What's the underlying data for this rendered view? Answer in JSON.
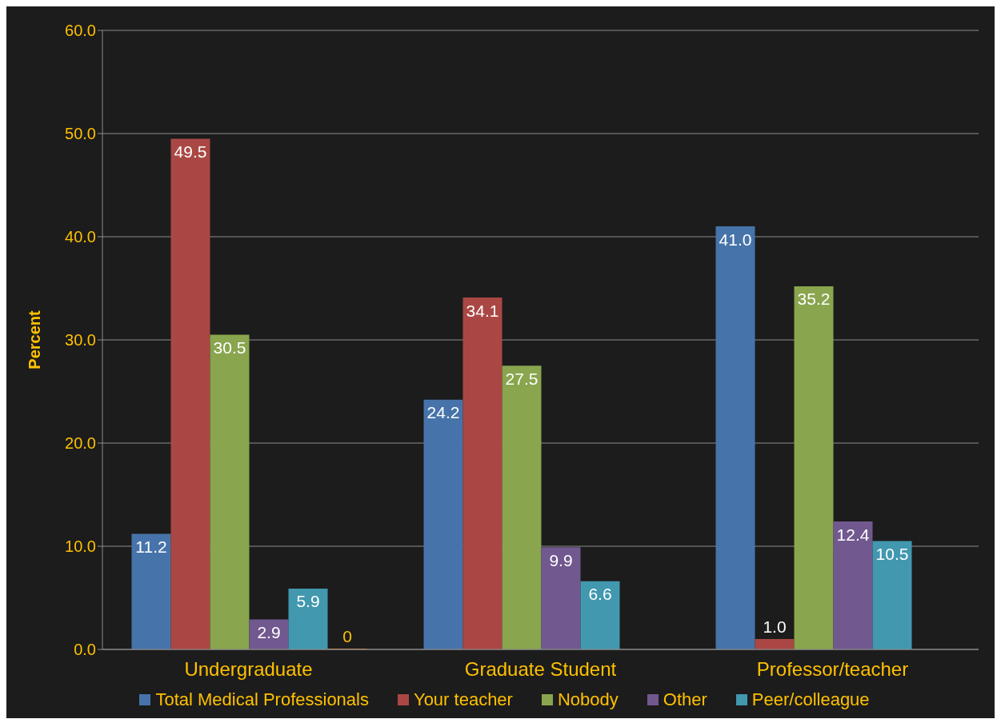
{
  "chart_data": {
    "type": "bar",
    "ylabel": "Percent",
    "categories": [
      "Undergraduate",
      "Graduate Student",
      "Professor/teacher"
    ],
    "series": [
      {
        "name": "Total Medical Professionals",
        "color": "#4674aa",
        "values": [
          11.2,
          24.2,
          41.0
        ],
        "value_labels": [
          "11.2",
          "24.2",
          "41.0"
        ]
      },
      {
        "name": "Your teacher",
        "color": "#aa4744",
        "values": [
          49.5,
          34.1,
          1.0
        ],
        "value_labels": [
          "49.5",
          "34.1",
          "1.0"
        ]
      },
      {
        "name": "Nobody",
        "color": "#89a54e",
        "values": [
          30.5,
          27.5,
          35.2
        ],
        "value_labels": [
          "30.5",
          "27.5",
          "35.2"
        ]
      },
      {
        "name": "Other",
        "color": "#71588f",
        "values": [
          2.9,
          9.9,
          12.4
        ],
        "value_labels": [
          "2.9",
          "9.9",
          "12.4"
        ]
      },
      {
        "name": "Peer/colleague",
        "color": "#4198af",
        "values": [
          5.9,
          6.6,
          10.5
        ],
        "value_labels": [
          "5.9",
          "6.6",
          "10.5"
        ]
      },
      {
        "color": "#db843d",
        "values": [
          0,
          null,
          null
        ],
        "value_labels": [
          "0",
          null,
          null
        ]
      }
    ],
    "ylim": [
      0,
      60
    ],
    "yticks": [
      {
        "value": 0,
        "label": "0.0"
      },
      {
        "value": 10,
        "label": "10.0"
      },
      {
        "value": 20,
        "label": "20.0"
      },
      {
        "value": 30,
        "label": "30.0"
      },
      {
        "value": 40,
        "label": "40.0"
      },
      {
        "value": 50,
        "label": "50.0"
      },
      {
        "value": 60,
        "label": "60.0"
      }
    ],
    "grid": "y",
    "legend": "bottom"
  }
}
